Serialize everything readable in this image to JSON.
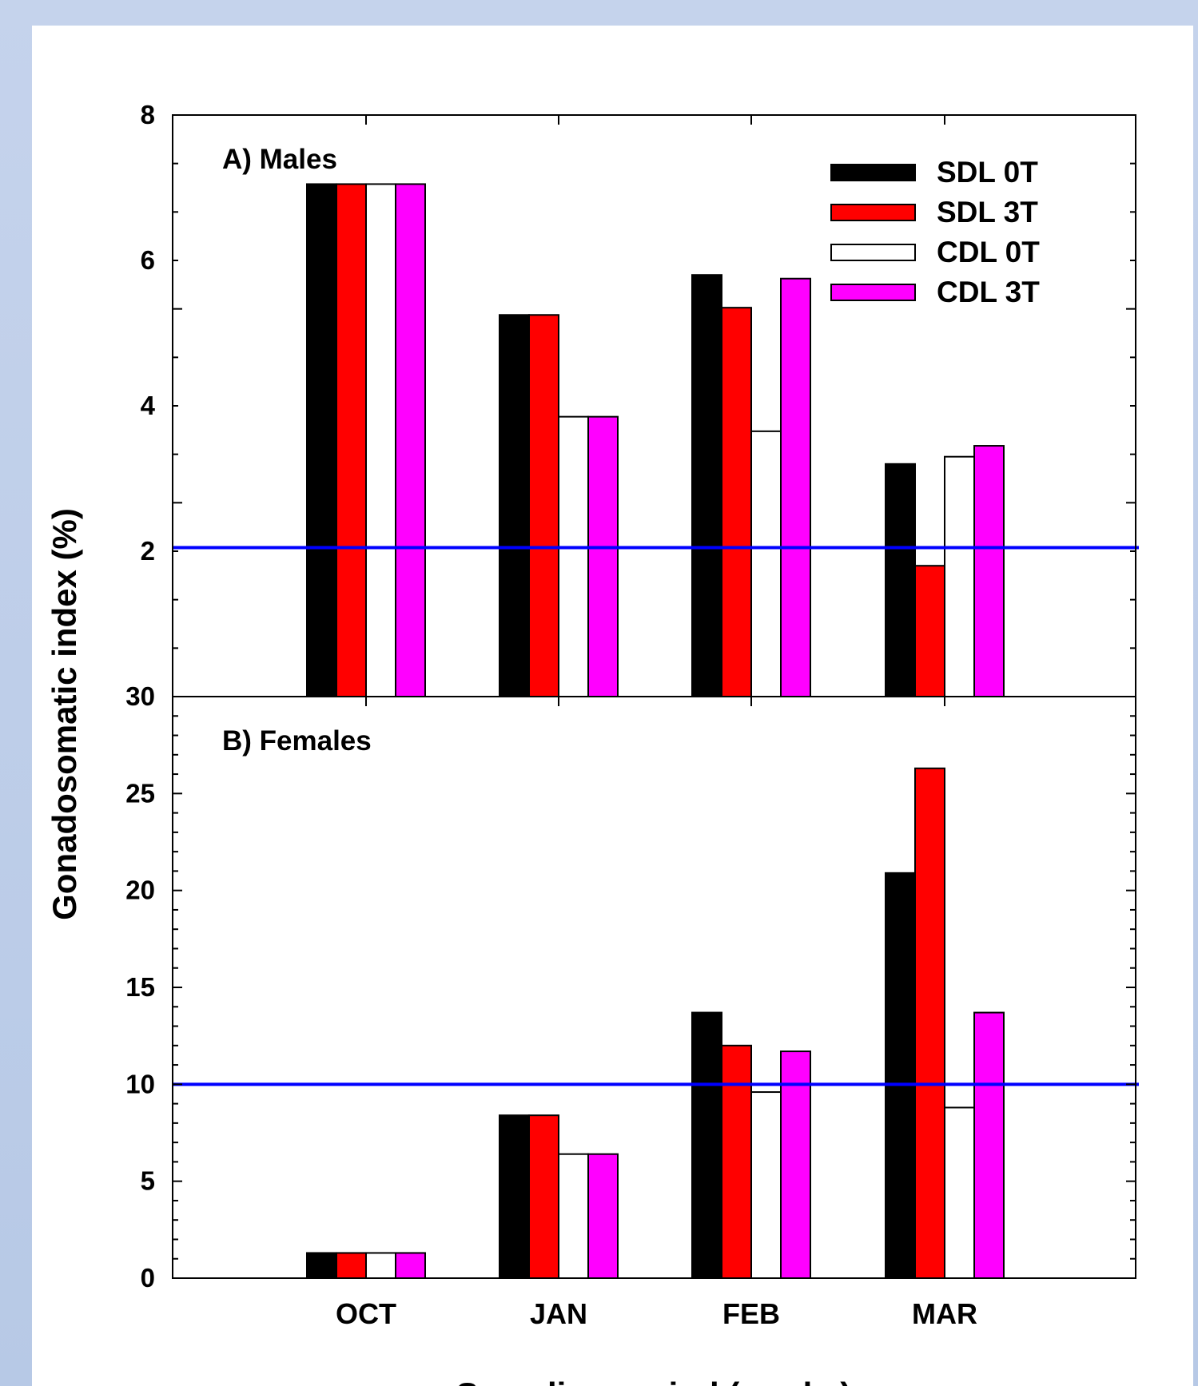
{
  "chart_data": {
    "type": "bar",
    "ylabel": "Gonadosomatic index (%)",
    "xlabel": "Sampling period (weeks)",
    "categories": [
      "OCT",
      "JAN",
      "FEB",
      "MAR"
    ],
    "legend": {
      "placement": "top-right",
      "entries": [
        {
          "name": "SDL 0T",
          "color": "#000000"
        },
        {
          "name": "SDL 3T",
          "color": "#ff0000"
        },
        {
          "name": "CDL 0T",
          "color": "#ffffff"
        },
        {
          "name": "CDL 3T",
          "color": "#ff00ff"
        }
      ]
    },
    "panels": [
      {
        "label": "A) Males",
        "ylim": [
          0,
          8
        ],
        "yticks": [
          "8",
          "6",
          "4",
          "2"
        ],
        "reference_line": {
          "y": 2.05,
          "color": "#0000ff"
        },
        "series": [
          {
            "name": "SDL 0T",
            "values": [
              7.05,
              5.25,
              5.8,
              3.2
            ]
          },
          {
            "name": "SDL 3T",
            "values": [
              7.05,
              5.25,
              5.35,
              1.8
            ]
          },
          {
            "name": "CDL 0T",
            "values": [
              7.05,
              3.85,
              3.65,
              3.3
            ]
          },
          {
            "name": "CDL 3T",
            "values": [
              7.05,
              3.85,
              5.75,
              3.45
            ]
          }
        ]
      },
      {
        "label": "B) Females",
        "ylim": [
          0,
          30
        ],
        "yticks": [
          "30",
          "25",
          "20",
          "15",
          "10",
          "5",
          "0"
        ],
        "reference_line": {
          "y": 10,
          "color": "#0000ff"
        },
        "series": [
          {
            "name": "SDL 0T",
            "values": [
              1.3,
              8.4,
              13.7,
              20.9
            ]
          },
          {
            "name": "SDL 3T",
            "values": [
              1.3,
              8.4,
              12.0,
              26.3
            ]
          },
          {
            "name": "CDL 0T",
            "values": [
              1.3,
              6.4,
              9.6,
              8.8
            ]
          },
          {
            "name": "CDL 3T",
            "values": [
              1.3,
              6.4,
              11.7,
              13.7
            ]
          }
        ]
      }
    ]
  }
}
